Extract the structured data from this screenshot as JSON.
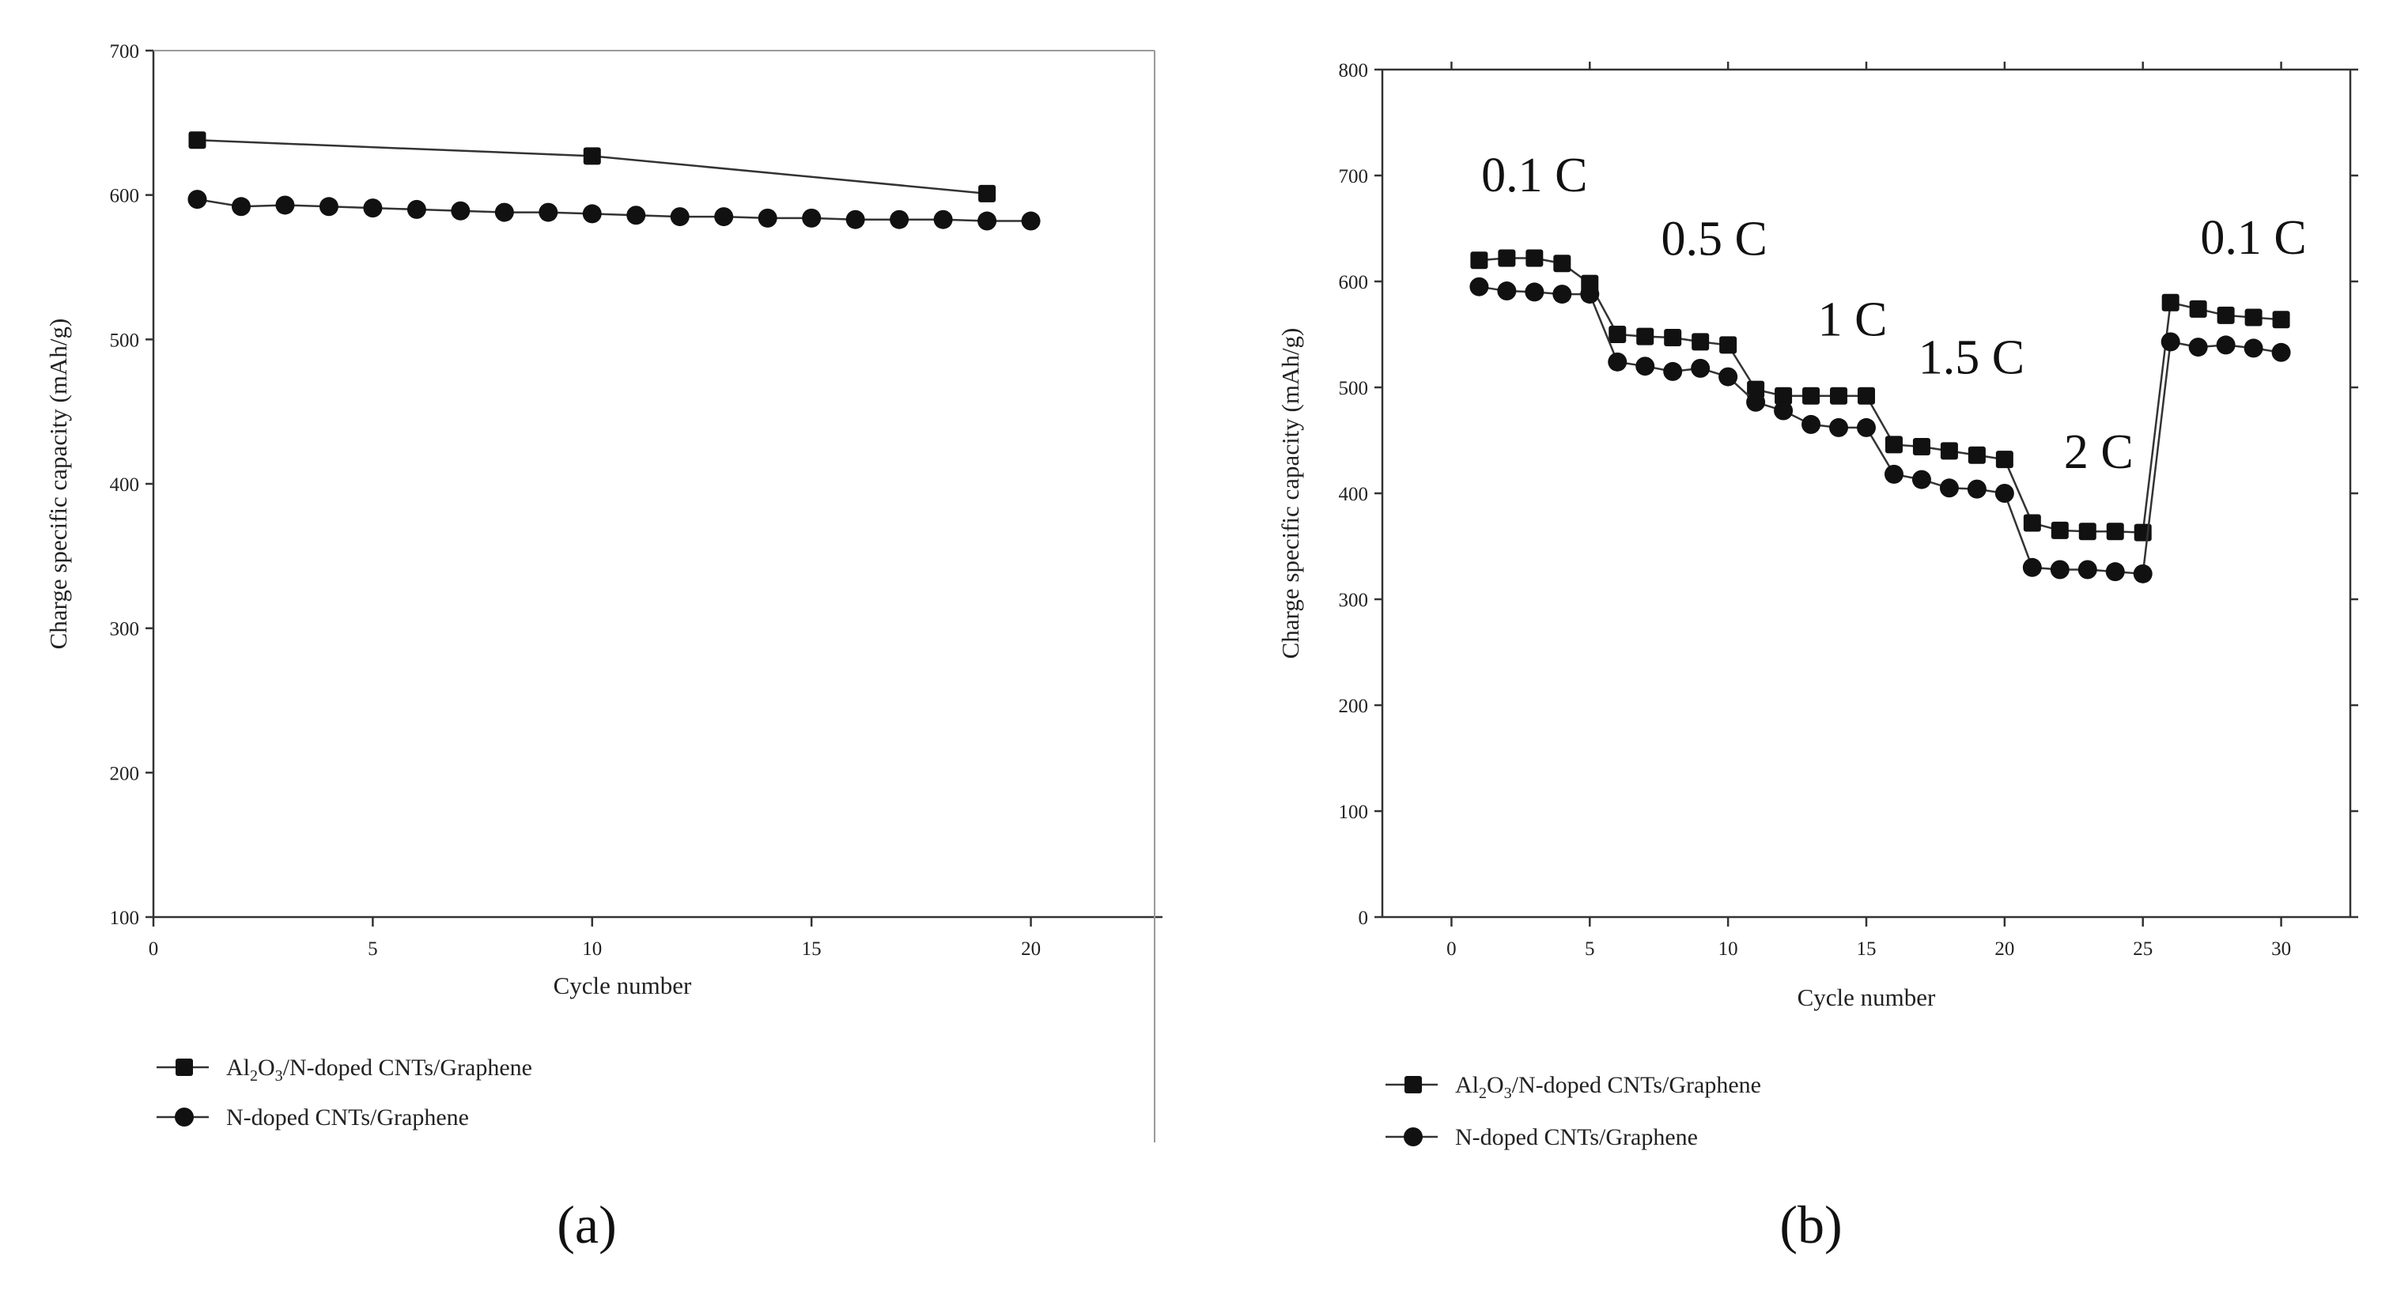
{
  "chart_data": [
    {
      "type": "line",
      "panel": "(a)",
      "xlabel": "Cycle number",
      "ylabel": "Charge specific capacity (mAh/g)",
      "xlim": [
        0,
        23
      ],
      "ylim": [
        100,
        700
      ],
      "xticks": [
        0,
        5,
        10,
        15,
        20
      ],
      "yticks": [
        100,
        200,
        300,
        400,
        500,
        600,
        700
      ],
      "series": [
        {
          "name": "Al2O3/N-doped CNTs/Graphene",
          "marker": "square",
          "x": [
            1,
            10,
            19
          ],
          "y": [
            638,
            627,
            601
          ]
        },
        {
          "name": "N-doped CNTs/Graphene",
          "marker": "circle",
          "x": [
            1,
            2,
            3,
            4,
            5,
            6,
            7,
            8,
            9,
            10,
            11,
            12,
            13,
            14,
            15,
            16,
            17,
            18,
            19,
            20
          ],
          "y": [
            597,
            592,
            593,
            592,
            591,
            590,
            589,
            588,
            588,
            587,
            586,
            585,
            585,
            584,
            584,
            583,
            583,
            583,
            582,
            582
          ]
        }
      ],
      "legend": [
        {
          "prefix": "Al",
          "sub1": "2",
          "mid": "O",
          "sub2": "3",
          "suffix": "/N-doped CNTs/Graphene"
        },
        {
          "prefix": "N-doped CNTs/Graphene",
          "sub1": "",
          "mid": "",
          "sub2": "",
          "suffix": ""
        }
      ]
    },
    {
      "type": "line",
      "panel": "(b)",
      "xlabel": "Cycle number",
      "ylabel": "Charge specific capacity (mAh/g)",
      "xlim": [
        -2.5,
        32.5
      ],
      "ylim": [
        0,
        800
      ],
      "xticks": [
        0,
        5,
        10,
        15,
        20,
        25,
        30
      ],
      "yticks": [
        0,
        100,
        200,
        300,
        400,
        500,
        600,
        700,
        800
      ],
      "series": [
        {
          "name": "Al2O3/N-doped CNTs/Graphene",
          "marker": "square",
          "x": [
            1,
            2,
            3,
            4,
            5,
            6,
            7,
            8,
            9,
            10,
            11,
            12,
            13,
            14,
            15,
            16,
            17,
            18,
            19,
            20,
            21,
            22,
            23,
            24,
            25,
            26,
            27,
            28,
            29,
            30
          ],
          "y": [
            620,
            622,
            622,
            617,
            598,
            550,
            548,
            547,
            543,
            540,
            498,
            492,
            492,
            492,
            492,
            446,
            444,
            440,
            436,
            432,
            372,
            365,
            364,
            364,
            363,
            580,
            574,
            568,
            566,
            564
          ]
        },
        {
          "name": "N-doped CNTs/Graphene",
          "marker": "circle",
          "x": [
            1,
            2,
            3,
            4,
            5,
            6,
            7,
            8,
            9,
            10,
            11,
            12,
            13,
            14,
            15,
            16,
            17,
            18,
            19,
            20,
            21,
            22,
            23,
            24,
            25,
            26,
            27,
            28,
            29,
            30
          ],
          "y": [
            595,
            591,
            590,
            588,
            588,
            524,
            520,
            515,
            518,
            510,
            486,
            478,
            465,
            462,
            462,
            418,
            413,
            405,
            404,
            400,
            330,
            328,
            328,
            326,
            324,
            543,
            538,
            540,
            537,
            533
          ]
        }
      ],
      "annotations": [
        {
          "text": "0.1 C",
          "x": 3,
          "y": 685
        },
        {
          "text": "0.5 C",
          "x": 9.5,
          "y": 625
        },
        {
          "text": "1 C",
          "x": 14.5,
          "y": 549
        },
        {
          "text": "1.5 C",
          "x": 18.8,
          "y": 513
        },
        {
          "text": "2 C",
          "x": 23.4,
          "y": 424
        },
        {
          "text": "0.1 C",
          "x": 29,
          "y": 626
        }
      ],
      "legend": [
        {
          "prefix": "Al",
          "sub1": "2",
          "mid": "O",
          "sub2": "3",
          "suffix": "/N-doped CNTs/Graphene"
        },
        {
          "prefix": "N-doped CNTs/Graphene",
          "sub1": "",
          "mid": "",
          "sub2": "",
          "suffix": ""
        }
      ]
    }
  ]
}
